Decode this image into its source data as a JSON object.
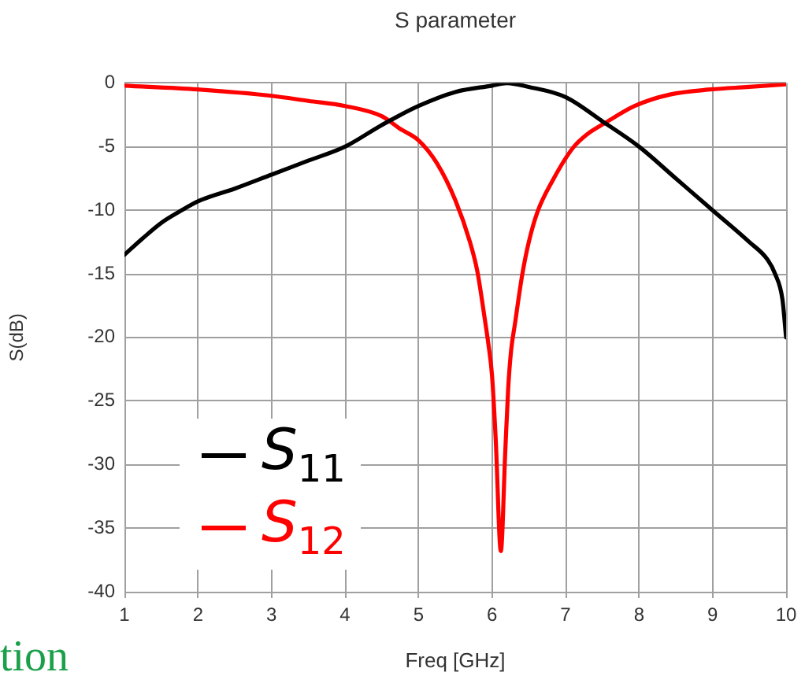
{
  "chart_data": {
    "type": "line",
    "title": "S parameter",
    "xlabel": "Freq [GHz]",
    "ylabel": "S(dB)",
    "annotations": [
      "tion"
    ],
    "xlim": [
      1,
      10
    ],
    "ylim": [
      -40,
      0
    ],
    "xticks": [
      1,
      2,
      3,
      4,
      5,
      6,
      7,
      8,
      9,
      10
    ],
    "yticks": [
      0,
      -5,
      -10,
      -15,
      -20,
      -25,
      -30,
      -35,
      -40
    ],
    "grid": true,
    "legend": "bottom left",
    "series": [
      {
        "name": "S$_{11}$",
        "color": "#000000",
        "x": [
          1,
          1.25,
          1.5,
          1.75,
          2,
          2.5,
          3,
          3.5,
          4,
          4.5,
          5,
          5.5,
          6,
          6.2,
          6.5,
          7,
          7.5,
          8,
          8.5,
          9,
          9.5,
          9.75,
          9.85,
          9.95,
          10
        ],
        "values": [
          -13.5,
          -12.2,
          -11.0,
          -10.1,
          -9.3,
          -8.3,
          -7.2,
          -6.1,
          -5.0,
          -3.3,
          -1.8,
          -0.7,
          -0.2,
          0,
          -0.3,
          -1.1,
          -3.0,
          -5.0,
          -7.5,
          -10.0,
          -12.5,
          -13.9,
          -15.0,
          -17.0,
          -20.0
        ]
      },
      {
        "name": "S$_{12}$",
        "color": "#ff0000",
        "x": [
          1,
          2,
          3,
          3.5,
          4,
          4.5,
          4.75,
          5,
          5.25,
          5.5,
          5.7,
          5.8,
          5.9,
          5.95,
          6.0,
          6.05,
          6.12,
          6.18,
          6.22,
          6.26,
          6.31,
          6.41,
          6.5,
          6.62,
          6.83,
          7.1,
          7.3,
          7.52,
          7.94,
          8.42,
          8.97,
          9.5,
          10
        ],
        "values": [
          -0.2,
          -0.5,
          -1.0,
          -1.4,
          -1.8,
          -2.6,
          -3.6,
          -4.5,
          -6.3,
          -9.2,
          -12.5,
          -14.8,
          -18.5,
          -20.5,
          -23.0,
          -28.0,
          -36.8,
          -29.0,
          -24.0,
          -21.0,
          -19.0,
          -15.1,
          -12.5,
          -10.1,
          -7.6,
          -5.1,
          -4.0,
          -3.2,
          -1.8,
          -0.9,
          -0.5,
          -0.3,
          -0.1
        ]
      }
    ]
  }
}
